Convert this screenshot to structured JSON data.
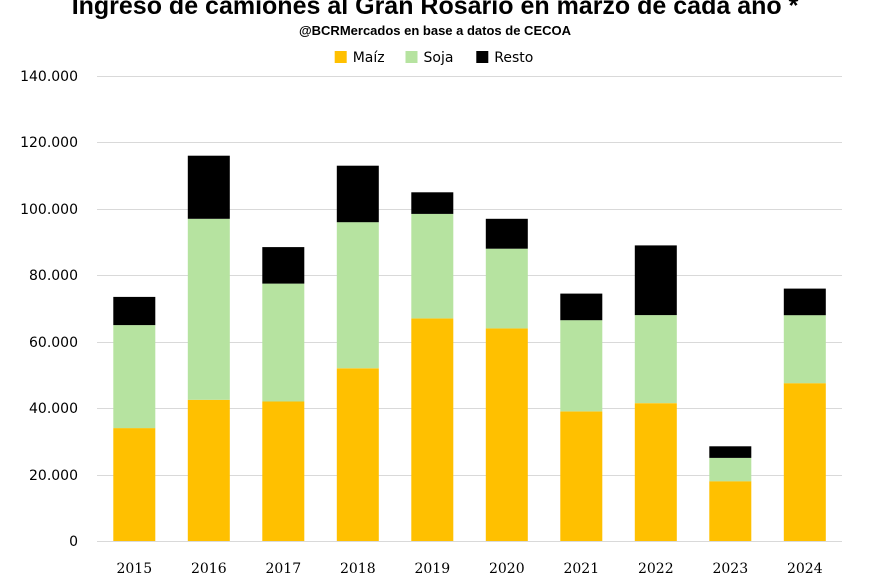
{
  "chart_data": {
    "type": "bar",
    "stacked": true,
    "title": "Ingreso de camiones al Gran Rosario en marzo de cada año *",
    "subtitle": "@BCRMercados en base a datos de CECOA",
    "xlabel": "",
    "ylabel": "",
    "ylim": [
      0,
      140000
    ],
    "yticks": [
      0,
      20000,
      40000,
      60000,
      80000,
      100000,
      120000,
      140000
    ],
    "ytick_labels": [
      "0",
      "20.000",
      "40.000",
      "60.000",
      "80.000",
      "100.000",
      "120.000",
      "140.000"
    ],
    "grid": true,
    "legend_position": "top-center",
    "categories": [
      "2015",
      "2016",
      "2017",
      "2018",
      "2019",
      "2020",
      "2021",
      "2022",
      "2023",
      "2024"
    ],
    "series": [
      {
        "name": "Maíz",
        "color": "#ffc000",
        "values": [
          34000,
          42500,
          42000,
          52000,
          67000,
          64000,
          39000,
          41500,
          18000,
          47500
        ]
      },
      {
        "name": "Soja",
        "color": "#b6e3a0",
        "values": [
          31000,
          54500,
          35500,
          44000,
          31500,
          24000,
          27500,
          26500,
          7000,
          20500
        ]
      },
      {
        "name": "Resto",
        "color": "#000000",
        "values": [
          8500,
          19000,
          11000,
          17000,
          6500,
          9000,
          8000,
          21000,
          3500,
          8000
        ]
      }
    ]
  }
}
